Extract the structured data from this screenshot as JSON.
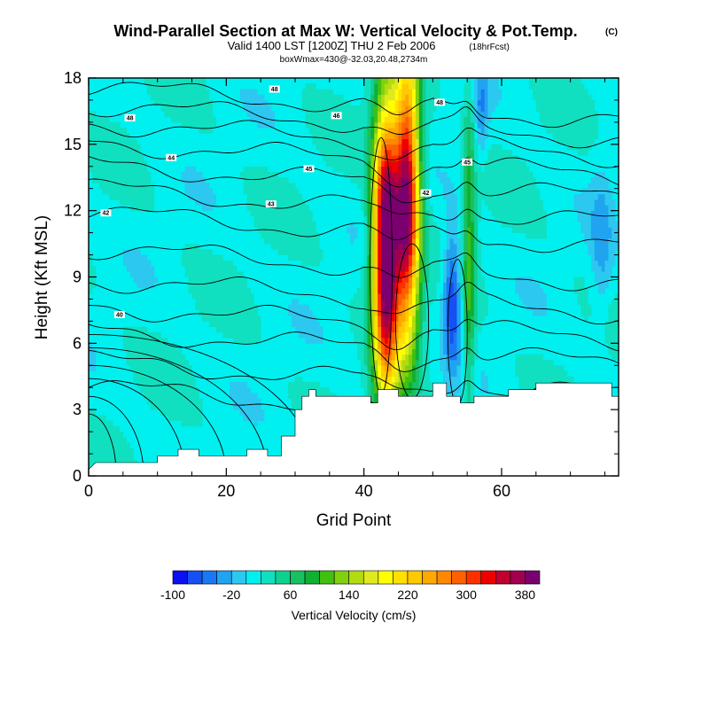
{
  "chart_data": {
    "type": "heatmap",
    "title": "Wind-Parallel Section at Max W: Vertical Velocity & Pot.Temp.",
    "title_mark": "(C)",
    "subtitle": "Valid 1400 LST [1200Z] THU 2 Feb 2006",
    "subtitle_note": "(18hrFcst)",
    "subtitle2": "boxWmax=430@-32.03,20.48,2734m",
    "xlabel": "Grid Point",
    "ylabel": "Height (Kft MSL)",
    "xlim": [
      0,
      77
    ],
    "ylim": [
      0,
      18
    ],
    "x_ticks": [
      "0",
      "20",
      "40",
      "60"
    ],
    "x_tick_values": [
      0,
      20,
      40,
      60
    ],
    "y_ticks": [
      "0",
      "3",
      "6",
      "9",
      "12",
      "15",
      "18"
    ],
    "y_tick_values": [
      0,
      3,
      6,
      9,
      12,
      15,
      18
    ],
    "colorbar": {
      "title": "Vertical Velocity (cm/s)",
      "labels": [
        "-100",
        "-20",
        "60",
        "140",
        "220",
        "300",
        "380"
      ],
      "label_values": [
        -100,
        -20,
        60,
        140,
        220,
        300,
        380
      ],
      "min": -100,
      "max": 400,
      "levels": 25,
      "colors": [
        "#0a10f0",
        "#1550f5",
        "#1a78f5",
        "#20a4f0",
        "#2cc8f0",
        "#00f0f0",
        "#10e0c0",
        "#10d090",
        "#18c060",
        "#10b030",
        "#40c010",
        "#80d010",
        "#b0dc10",
        "#e0e820",
        "#ffff00",
        "#ffe000",
        "#ffc800",
        "#ffa800",
        "#ff8800",
        "#ff6000",
        "#ff3000",
        "#ee0000",
        "#c00030",
        "#a00050",
        "#7a0070"
      ]
    },
    "terrain_kft": [
      [
        0,
        0.3
      ],
      [
        1,
        0.6
      ],
      [
        10,
        0.6
      ],
      [
        10,
        0.9
      ],
      [
        13,
        0.9
      ],
      [
        13,
        1.2
      ],
      [
        16,
        1.2
      ],
      [
        16,
        0.9
      ],
      [
        23,
        0.9
      ],
      [
        23,
        1.2
      ],
      [
        26,
        1.2
      ],
      [
        26,
        0.9
      ],
      [
        28,
        0.9
      ],
      [
        28,
        1.8
      ],
      [
        30,
        1.8
      ],
      [
        30,
        3.0
      ],
      [
        31,
        3.0
      ],
      [
        31,
        3.6
      ],
      [
        32,
        3.6
      ],
      [
        32,
        3.9
      ],
      [
        33,
        3.9
      ],
      [
        33,
        3.6
      ],
      [
        41,
        3.6
      ],
      [
        41,
        3.3
      ],
      [
        42,
        3.3
      ],
      [
        42,
        3.9
      ],
      [
        45,
        3.9
      ],
      [
        45,
        3.6
      ],
      [
        50,
        3.6
      ],
      [
        50,
        4.2
      ],
      [
        52,
        4.2
      ],
      [
        52,
        3.6
      ],
      [
        54,
        3.6
      ],
      [
        54,
        3.3
      ],
      [
        56,
        3.3
      ],
      [
        56,
        3.6
      ],
      [
        61,
        3.6
      ],
      [
        61,
        3.9
      ],
      [
        65,
        3.9
      ],
      [
        65,
        4.2
      ],
      [
        76,
        4.2
      ],
      [
        76,
        3.6
      ],
      [
        77,
        3.6
      ]
    ],
    "updrafts": [
      {
        "x": 43.2,
        "width": 1.9,
        "z_center": 10.2,
        "z_spread": 6.5,
        "peak_cms": 430
      },
      {
        "x": 46.3,
        "width": 1.8,
        "z_center": 12.5,
        "z_spread": 6.5,
        "peak_cms": 360
      },
      {
        "x": 55.3,
        "width": 0.9,
        "z_center": 10.0,
        "z_spread": 7.0,
        "peak_cms": 90
      }
    ],
    "downdrafts": [
      {
        "x": 52.8,
        "width": 1.3,
        "z_center": 8.0,
        "z_spread": 3.0,
        "peak_cms": -100
      },
      {
        "x": 57.0,
        "width": 1.0,
        "z_center": 16.5,
        "z_spread": 2.0,
        "peak_cms": -50
      },
      {
        "x": 74.5,
        "width": 1.6,
        "z_center": 10.5,
        "z_spread": 3.5,
        "peak_cms": -40
      }
    ],
    "theta_contours": [
      {
        "level": "40",
        "label_at": [
          4.5,
          7.3
        ]
      },
      {
        "level": "42",
        "label_at": [
          2.5,
          11.9
        ]
      },
      {
        "level": "43",
        "label_at": [
          26.5,
          12.3
        ]
      },
      {
        "level": "44",
        "label_at": [
          12.0,
          14.4
        ]
      },
      {
        "level": "45",
        "label_at": [
          32.0,
          13.9
        ]
      },
      {
        "level": "48",
        "label_at": [
          6.0,
          16.2
        ]
      },
      {
        "level": "46",
        "label_at": [
          36.0,
          16.3
        ]
      },
      {
        "level": "48",
        "label_at": [
          27.0,
          17.5
        ]
      },
      {
        "level": "42",
        "label_at": [
          49.0,
          12.8
        ]
      },
      {
        "level": "45",
        "label_at": [
          55.0,
          14.2
        ]
      },
      {
        "level": "48",
        "label_at": [
          51.0,
          16.9
        ]
      }
    ]
  }
}
